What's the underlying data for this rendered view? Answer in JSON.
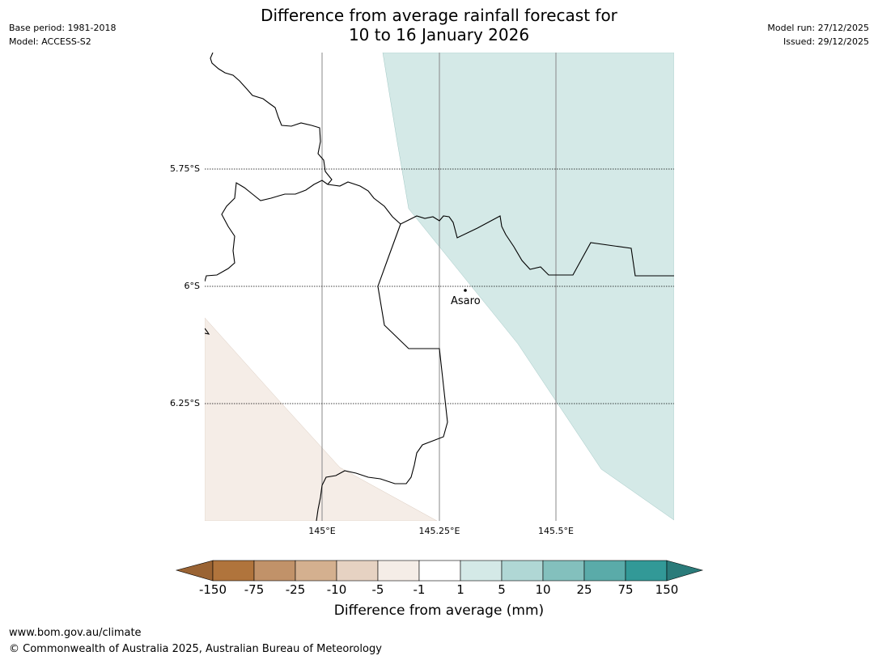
{
  "title": {
    "line1": "Difference from average rainfall forecast for",
    "line2": "10 to 16 January 2026"
  },
  "meta": {
    "base_period": "Base period: 1981-2018",
    "model": "Model: ACCESS-S2",
    "model_run": "Model run: 27/12/2025",
    "issued": "Issued: 29/12/2025"
  },
  "map": {
    "latitude_labels": [
      "5.75°S",
      "6°S",
      "6.25°S"
    ],
    "longitude_labels": [
      "145°E",
      "145.25°E",
      "145.5°E"
    ],
    "place_label": "Asaro",
    "wet_anomaly_color": "#d4e9e7",
    "dry_anomaly_color": "#f5ede7"
  },
  "colorbar": {
    "title": "Difference from average (mm)",
    "tick_labels": [
      "-150",
      "-75",
      "-25",
      "-10",
      "-5",
      "-1",
      "1",
      "5",
      "10",
      "25",
      "75",
      "150"
    ],
    "colors": [
      "#9a6333",
      "#b0743c",
      "#c19269",
      "#d4b08f",
      "#e6d2c2",
      "#f5ede7",
      "#ffffff",
      "#d4e9e7",
      "#b0d7d5",
      "#83c0bd",
      "#5aaba9",
      "#329997",
      "#2a7b7a"
    ]
  },
  "footer": {
    "url": "www.bom.gov.au/climate",
    "copyright": "© Commonwealth of Australia 2025, Australian Bureau of Meteorology"
  }
}
